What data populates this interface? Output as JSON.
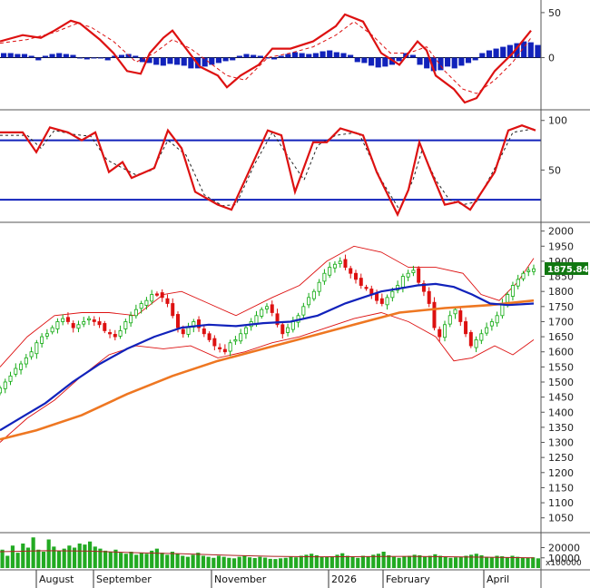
{
  "chart_data": [
    {
      "panel": "MACD",
      "type": "line",
      "y_ticks": [
        50,
        0
      ],
      "ylim": [
        -55,
        62
      ],
      "zero_line": true,
      "macd_line": {
        "color": "#dd1111",
        "points": [
          [
            0,
            18
          ],
          [
            25,
            25
          ],
          [
            45,
            22
          ],
          [
            60,
            30
          ],
          [
            78,
            41
          ],
          [
            88,
            38
          ],
          [
            110,
            20
          ],
          [
            125,
            5
          ],
          [
            140,
            -15
          ],
          [
            155,
            -18
          ],
          [
            165,
            5
          ],
          [
            180,
            22
          ],
          [
            190,
            30
          ],
          [
            205,
            10
          ],
          [
            220,
            -10
          ],
          [
            240,
            -20
          ],
          [
            250,
            -33
          ],
          [
            265,
            -20
          ],
          [
            285,
            -8
          ],
          [
            300,
            10
          ],
          [
            320,
            10
          ],
          [
            345,
            18
          ],
          [
            370,
            35
          ],
          [
            380,
            48
          ],
          [
            400,
            40
          ],
          [
            420,
            5
          ],
          [
            440,
            -8
          ],
          [
            460,
            18
          ],
          [
            470,
            8
          ],
          [
            480,
            -20
          ],
          [
            500,
            -35
          ],
          [
            512,
            -50
          ],
          [
            525,
            -45
          ],
          [
            545,
            -15
          ],
          [
            565,
            5
          ],
          [
            585,
            30
          ]
        ]
      },
      "signal_line": {
        "color": "#dd1111",
        "style": "dashed",
        "points": [
          [
            0,
            16
          ],
          [
            30,
            20
          ],
          [
            60,
            28
          ],
          [
            85,
            38
          ],
          [
            100,
            34
          ],
          [
            125,
            18
          ],
          [
            150,
            -5
          ],
          [
            170,
            5
          ],
          [
            190,
            20
          ],
          [
            210,
            10
          ],
          [
            230,
            -5
          ],
          [
            250,
            -20
          ],
          [
            270,
            -25
          ],
          [
            295,
            0
          ],
          [
            320,
            5
          ],
          [
            345,
            12
          ],
          [
            370,
            25
          ],
          [
            390,
            40
          ],
          [
            410,
            25
          ],
          [
            430,
            5
          ],
          [
            450,
            5
          ],
          [
            470,
            12
          ],
          [
            490,
            -15
          ],
          [
            510,
            -35
          ],
          [
            525,
            -40
          ],
          [
            545,
            -25
          ],
          [
            565,
            -5
          ],
          [
            585,
            22
          ]
        ]
      },
      "histogram": [
        5,
        5,
        4,
        4,
        2,
        -3,
        2,
        4,
        5,
        4,
        3,
        -1,
        -2,
        -1,
        -1,
        -3,
        2,
        3,
        4,
        2,
        -5,
        -6,
        -8,
        -9,
        -7,
        -8,
        -9,
        -12,
        -12,
        -10,
        -8,
        -6,
        -4,
        -3,
        2,
        4,
        3,
        2,
        -1,
        -2,
        2,
        4,
        6,
        5,
        4,
        5,
        7,
        8,
        6,
        5,
        3,
        -5,
        -6,
        -9,
        -11,
        -10,
        -8,
        -4,
        5,
        3,
        -8,
        -12,
        -15,
        -14,
        -10,
        -12,
        -9,
        -6,
        -3,
        5,
        8,
        10,
        12,
        14,
        16,
        18,
        17,
        14
      ]
    },
    {
      "panel": "Stochastic",
      "type": "line",
      "y_ticks": [
        100,
        50
      ],
      "ylim": [
        0,
        108
      ],
      "levels": [
        80,
        20
      ],
      "k_line": {
        "color": "#dd1111",
        "points": [
          [
            0,
            88
          ],
          [
            25,
            88
          ],
          [
            40,
            68
          ],
          [
            55,
            93
          ],
          [
            75,
            88
          ],
          [
            90,
            80
          ],
          [
            105,
            88
          ],
          [
            120,
            48
          ],
          [
            135,
            58
          ],
          [
            145,
            42
          ],
          [
            160,
            48
          ],
          [
            170,
            52
          ],
          [
            185,
            90
          ],
          [
            200,
            72
          ],
          [
            215,
            28
          ],
          [
            240,
            15
          ],
          [
            255,
            10
          ],
          [
            270,
            40
          ],
          [
            295,
            90
          ],
          [
            310,
            85
          ],
          [
            325,
            28
          ],
          [
            345,
            78
          ],
          [
            360,
            78
          ],
          [
            375,
            92
          ],
          [
            400,
            85
          ],
          [
            415,
            48
          ],
          [
            438,
            5
          ],
          [
            450,
            30
          ],
          [
            462,
            78
          ],
          [
            475,
            48
          ],
          [
            490,
            15
          ],
          [
            505,
            18
          ],
          [
            518,
            10
          ],
          [
            545,
            48
          ],
          [
            560,
            90
          ],
          [
            575,
            95
          ],
          [
            590,
            90
          ]
        ]
      },
      "d_line": {
        "color": "#222222",
        "style": "dashed",
        "points": [
          [
            0,
            85
          ],
          [
            30,
            85
          ],
          [
            45,
            72
          ],
          [
            60,
            90
          ],
          [
            80,
            86
          ],
          [
            100,
            84
          ],
          [
            118,
            60
          ],
          [
            135,
            52
          ],
          [
            150,
            45
          ],
          [
            168,
            50
          ],
          [
            185,
            80
          ],
          [
            205,
            65
          ],
          [
            225,
            25
          ],
          [
            245,
            14
          ],
          [
            260,
            15
          ],
          [
            280,
            55
          ],
          [
            300,
            88
          ],
          [
            320,
            60
          ],
          [
            335,
            40
          ],
          [
            350,
            75
          ],
          [
            370,
            85
          ],
          [
            395,
            88
          ],
          [
            420,
            40
          ],
          [
            440,
            10
          ],
          [
            455,
            40
          ],
          [
            465,
            70
          ],
          [
            480,
            40
          ],
          [
            495,
            20
          ],
          [
            510,
            15
          ],
          [
            525,
            18
          ],
          [
            550,
            60
          ],
          [
            565,
            88
          ],
          [
            590,
            92
          ]
        ]
      }
    },
    {
      "panel": "Price",
      "type": "line",
      "y_ticks": [
        2000,
        1950,
        1900,
        1850,
        1800,
        1750,
        1700,
        1650,
        1600,
        1550,
        1500,
        1450,
        1400,
        1350,
        1300,
        1250,
        1200,
        1150,
        1100,
        1050
      ],
      "ylim": [
        1010,
        2020
      ],
      "last_price_label": "1875.84",
      "close_series": [
        1480,
        1500,
        1520,
        1545,
        1560,
        1580,
        1600,
        1630,
        1650,
        1660,
        1680,
        1700,
        1710,
        1700,
        1680,
        1690,
        1700,
        1710,
        1700,
        1690,
        1670,
        1660,
        1650,
        1670,
        1700,
        1720,
        1740,
        1760,
        1770,
        1790,
        1790,
        1780,
        1760,
        1720,
        1680,
        1660,
        1680,
        1700,
        1680,
        1660,
        1640,
        1620,
        1610,
        1600,
        1630,
        1640,
        1660,
        1680,
        1700,
        1720,
        1740,
        1750,
        1730,
        1690,
        1660,
        1680,
        1700,
        1720,
        1750,
        1780,
        1800,
        1830,
        1860,
        1880,
        1890,
        1900,
        1880,
        1860,
        1840,
        1820,
        1810,
        1790,
        1770,
        1760,
        1780,
        1800,
        1820,
        1850,
        1860,
        1870,
        1830,
        1800,
        1760,
        1680,
        1650,
        1690,
        1720,
        1740,
        1700,
        1660,
        1620,
        1640,
        1660,
        1680,
        1700,
        1720,
        1760,
        1790,
        1820,
        1840,
        1860,
        1870,
        1875
      ],
      "close_x_range": [
        0,
        588
      ],
      "ma_slow": {
        "color": "#ee7722",
        "points": [
          [
            0,
            1310
          ],
          [
            40,
            1340
          ],
          [
            90,
            1390
          ],
          [
            140,
            1460
          ],
          [
            190,
            1520
          ],
          [
            240,
            1570
          ],
          [
            290,
            1610
          ],
          [
            340,
            1650
          ],
          [
            390,
            1690
          ],
          [
            440,
            1730
          ],
          [
            490,
            1745
          ],
          [
            540,
            1755
          ],
          [
            588,
            1770
          ]
        ]
      },
      "ma_mid": {
        "color": "#1122bb",
        "points": [
          [
            0,
            1340
          ],
          [
            25,
            1385
          ],
          [
            50,
            1430
          ],
          [
            80,
            1500
          ],
          [
            110,
            1560
          ],
          [
            140,
            1610
          ],
          [
            170,
            1650
          ],
          [
            200,
            1680
          ],
          [
            230,
            1690
          ],
          [
            260,
            1685
          ],
          [
            290,
            1695
          ],
          [
            320,
            1700
          ],
          [
            350,
            1720
          ],
          [
            380,
            1760
          ],
          [
            400,
            1780
          ],
          [
            420,
            1800
          ],
          [
            440,
            1810
          ],
          [
            460,
            1820
          ],
          [
            480,
            1825
          ],
          [
            500,
            1815
          ],
          [
            520,
            1790
          ],
          [
            540,
            1760
          ],
          [
            560,
            1755
          ],
          [
            588,
            1760
          ]
        ]
      },
      "bb_upper": {
        "color": "#dd1111",
        "points": [
          [
            0,
            1550
          ],
          [
            30,
            1650
          ],
          [
            60,
            1720
          ],
          [
            90,
            1730
          ],
          [
            120,
            1730
          ],
          [
            150,
            1720
          ],
          [
            180,
            1790
          ],
          [
            200,
            1800
          ],
          [
            230,
            1760
          ],
          [
            260,
            1720
          ],
          [
            300,
            1780
          ],
          [
            330,
            1820
          ],
          [
            360,
            1900
          ],
          [
            390,
            1950
          ],
          [
            420,
            1930
          ],
          [
            450,
            1880
          ],
          [
            480,
            1880
          ],
          [
            510,
            1860
          ],
          [
            530,
            1790
          ],
          [
            550,
            1770
          ],
          [
            570,
            1830
          ],
          [
            588,
            1910
          ]
        ]
      },
      "bb_lower": {
        "color": "#dd1111",
        "points": [
          [
            0,
            1300
          ],
          [
            30,
            1380
          ],
          [
            60,
            1440
          ],
          [
            90,
            1520
          ],
          [
            120,
            1590
          ],
          [
            150,
            1620
          ],
          [
            180,
            1610
          ],
          [
            210,
            1620
          ],
          [
            240,
            1580
          ],
          [
            270,
            1600
          ],
          [
            300,
            1630
          ],
          [
            330,
            1650
          ],
          [
            360,
            1680
          ],
          [
            390,
            1710
          ],
          [
            420,
            1730
          ],
          [
            450,
            1700
          ],
          [
            480,
            1650
          ],
          [
            500,
            1570
          ],
          [
            520,
            1580
          ],
          [
            545,
            1620
          ],
          [
            565,
            1590
          ],
          [
            588,
            1640
          ]
        ]
      }
    },
    {
      "panel": "Volume",
      "type": "bar",
      "y_ticks": [
        20000,
        10000
      ],
      "ylim": [
        0,
        32000
      ],
      "multiplier_label": "x100000",
      "ma_line": {
        "color": "#aa2222",
        "points": [
          [
            0,
            16000
          ],
          [
            50,
            17000
          ],
          [
            100,
            16500
          ],
          [
            150,
            15000
          ],
          [
            200,
            14000
          ],
          [
            250,
            12500
          ],
          [
            300,
            11500
          ],
          [
            350,
            11000
          ],
          [
            400,
            11200
          ],
          [
            450,
            11500
          ],
          [
            500,
            11000
          ],
          [
            550,
            10500
          ],
          [
            588,
            10000
          ]
        ]
      },
      "bars": [
        18000,
        12000,
        22000,
        15000,
        24000,
        20000,
        30000,
        18000,
        16000,
        28000,
        21000,
        17000,
        19000,
        22000,
        20000,
        24000,
        23000,
        26000,
        21000,
        19000,
        17000,
        16000,
        18000,
        15000,
        14000,
        16000,
        13000,
        15000,
        14000,
        17000,
        19000,
        15000,
        13000,
        16000,
        14000,
        12000,
        11000,
        13000,
        15000,
        12000,
        11000,
        10000,
        12000,
        11000,
        10000,
        9500,
        11000,
        12000,
        10500,
        9800,
        11000,
        10200,
        9000,
        8800,
        9500,
        10000,
        11000,
        10500,
        12000,
        13000,
        14000,
        12500,
        11000,
        10800,
        11500,
        13000,
        14500,
        12000,
        11000,
        10000,
        12000,
        11500,
        13000,
        14000,
        16000,
        12500,
        11000,
        10000,
        11500,
        12000,
        13000,
        12500,
        11000,
        12000,
        13500,
        12000,
        11000,
        10000,
        10500,
        11000,
        12000,
        13000,
        14000,
        12500,
        11000,
        10500,
        12000,
        11500,
        10500,
        12000,
        11000,
        10000,
        9800,
        10500,
        9500
      ]
    }
  ],
  "x_axis": {
    "months": [
      {
        "label": "August",
        "x": 40
      },
      {
        "label": "September",
        "x": 103
      },
      {
        "label": "November",
        "x": 233
      },
      {
        "label": "2026",
        "x": 362
      },
      {
        "label": "February",
        "x": 422
      },
      {
        "label": "April",
        "x": 533
      }
    ]
  },
  "colors": {
    "up_candle": "#11aa11",
    "down_candle": "#dd1111",
    "volume_bar": "#22aa22",
    "macd_hist": "#1122bb",
    "stoch_level": "#1122bb",
    "last_price_bg": "#117711"
  }
}
